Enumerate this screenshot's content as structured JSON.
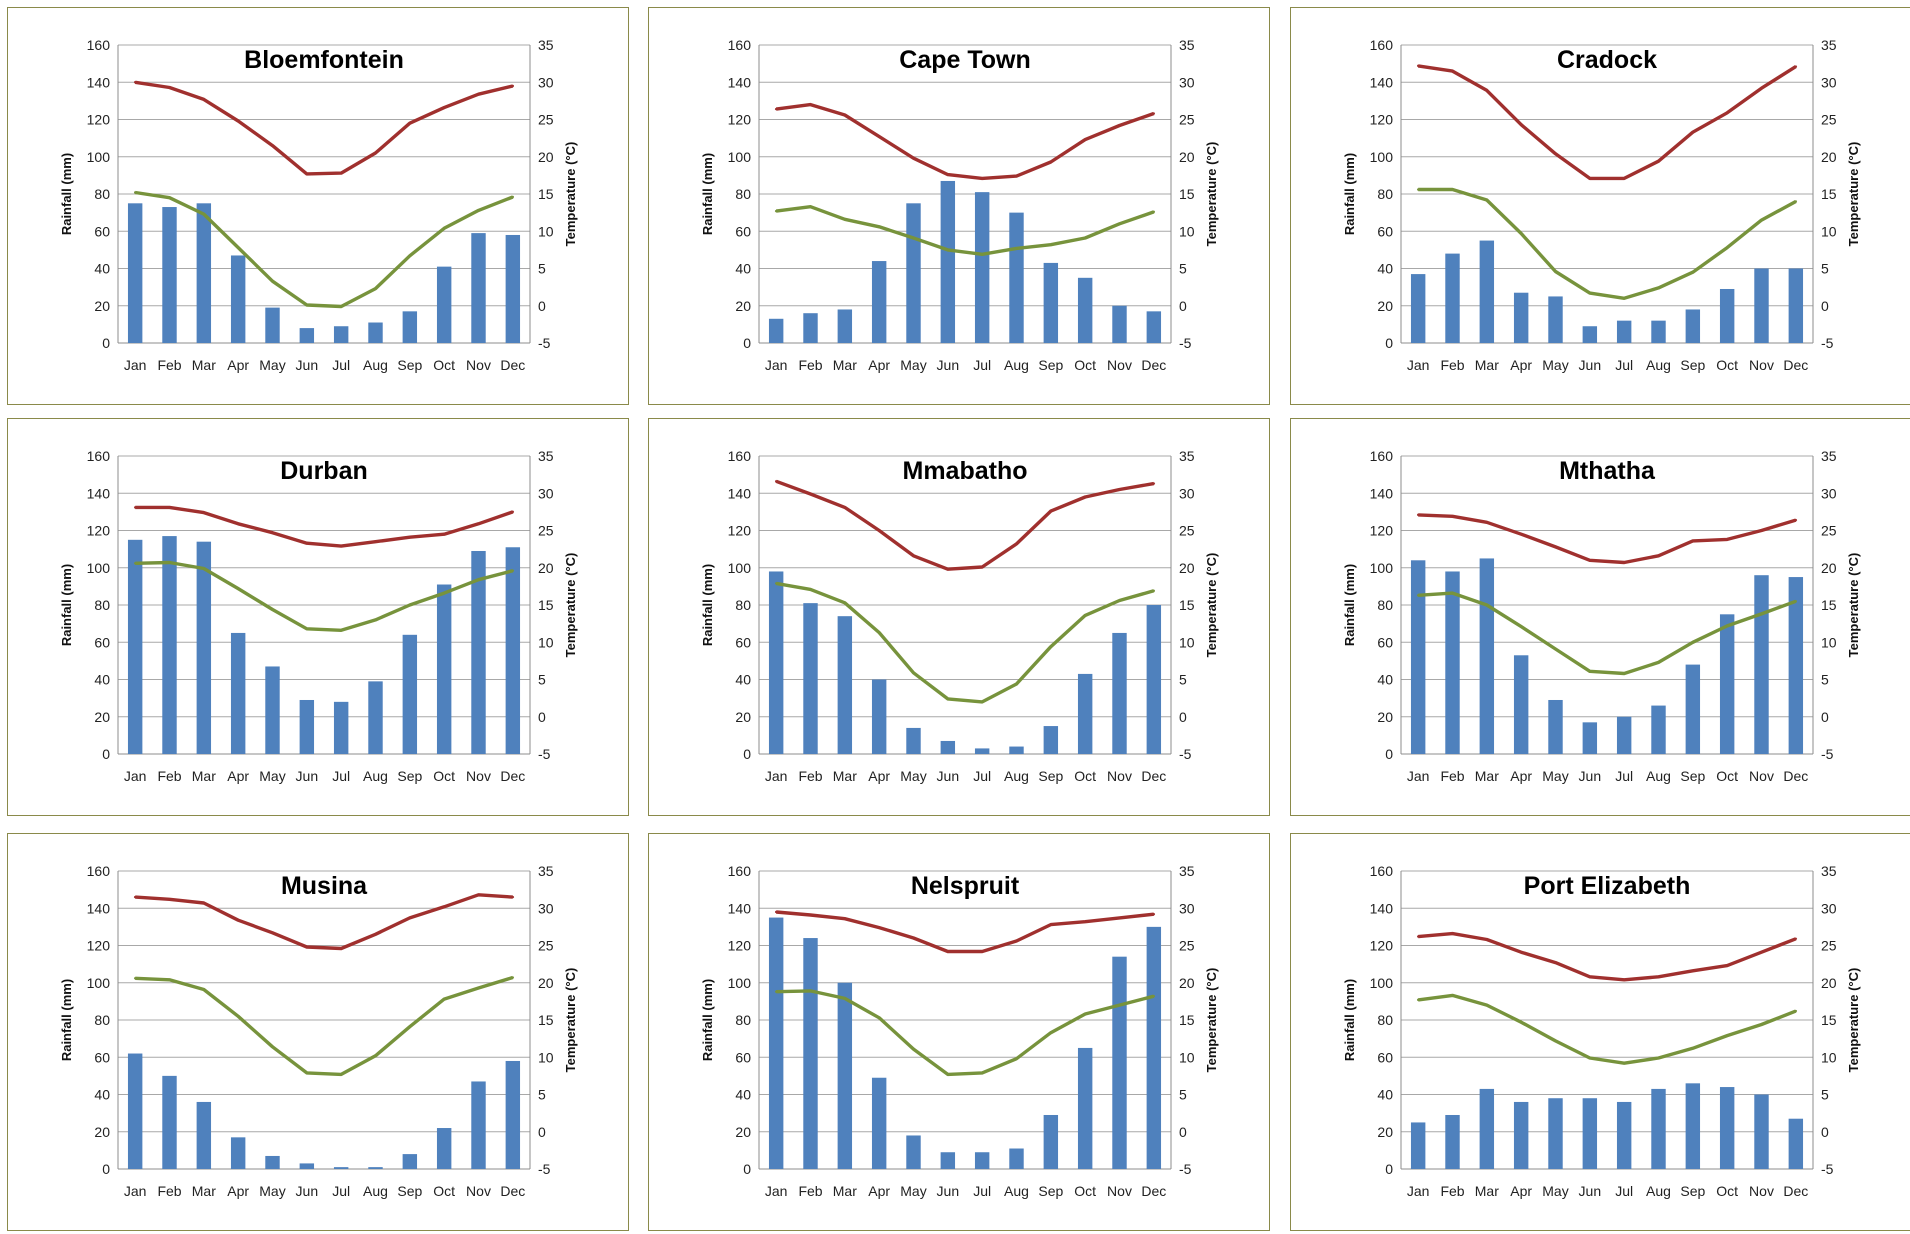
{
  "chart_data": [
    {
      "type": "bar",
      "title": "Bloemfontein",
      "categories": [
        "Jan",
        "Feb",
        "Mar",
        "Apr",
        "May",
        "Jun",
        "Jul",
        "Aug",
        "Sep",
        "Oct",
        "Nov",
        "Dec"
      ],
      "ylabel": "Rainfall  (mm)",
      "y2label": "Temperature (°C)",
      "ylim": [
        0,
        160
      ],
      "y2lim": [
        -5,
        35
      ],
      "yticks": [
        "0",
        "20",
        "40",
        "60",
        "80",
        "100",
        "120",
        "140",
        "160"
      ],
      "y2ticks": [
        "-5",
        "0",
        "5",
        "10",
        "15",
        "20",
        "25",
        "30",
        "35"
      ],
      "rainfall": [
        75,
        73,
        75,
        47,
        19,
        8,
        9,
        11,
        17,
        41,
        59,
        58
      ],
      "temp_max": [
        30,
        29.3,
        27.7,
        24.8,
        21.5,
        17.7,
        17.8,
        20.5,
        24.5,
        26.6,
        28.4,
        29.5
      ],
      "temp_min": [
        15.2,
        14.5,
        12.3,
        7.8,
        3.3,
        0.1,
        -0.1,
        2.3,
        6.7,
        10.4,
        12.8,
        14.6
      ],
      "colors": {
        "rainfall": "#4f81bd",
        "temp_max": "#a0302e",
        "temp_min": "#77933c"
      }
    },
    {
      "type": "bar",
      "title": "Cape Town",
      "categories": [
        "Jan",
        "Feb",
        "Mar",
        "Apr",
        "May",
        "Jun",
        "Jul",
        "Aug",
        "Sep",
        "Oct",
        "Nov",
        "Dec"
      ],
      "ylabel": "Rainfall  (mm)",
      "y2label": "Temperature (°C)",
      "ylim": [
        0,
        160
      ],
      "y2lim": [
        -5,
        35
      ],
      "yticks": [
        "0",
        "20",
        "40",
        "60",
        "80",
        "100",
        "120",
        "140",
        "160"
      ],
      "y2ticks": [
        "-5",
        "0",
        "5",
        "10",
        "15",
        "20",
        "25",
        "30",
        "35"
      ],
      "rainfall": [
        13,
        16,
        18,
        44,
        75,
        87,
        81,
        70,
        43,
        35,
        20,
        17
      ],
      "temp_max": [
        26.4,
        27,
        25.6,
        22.7,
        19.8,
        17.6,
        17.1,
        17.4,
        19.3,
        22.3,
        24.2,
        25.8
      ],
      "temp_min": [
        12.7,
        13.3,
        11.6,
        10.6,
        9.1,
        7.5,
        6.9,
        7.7,
        8.2,
        9.1,
        11,
        12.6
      ],
      "colors": {
        "rainfall": "#4f81bd",
        "temp_max": "#a0302e",
        "temp_min": "#77933c"
      }
    },
    {
      "type": "bar",
      "title": "Cradock",
      "categories": [
        "Jan",
        "Feb",
        "Mar",
        "Apr",
        "May",
        "Jun",
        "Jul",
        "Aug",
        "Sep",
        "Oct",
        "Nov",
        "Dec"
      ],
      "ylabel": "Rainfall  (mm)",
      "y2label": "Temperature (°C)",
      "ylim": [
        0,
        160
      ],
      "y2lim": [
        -5,
        35
      ],
      "yticks": [
        "0",
        "20",
        "40",
        "60",
        "80",
        "100",
        "120",
        "140",
        "160"
      ],
      "y2ticks": [
        "-5",
        "0",
        "5",
        "10",
        "15",
        "20",
        "25",
        "30",
        "35"
      ],
      "rainfall": [
        37,
        48,
        55,
        27,
        25,
        9,
        12,
        12,
        18,
        29,
        40,
        40
      ],
      "temp_max": [
        32.2,
        31.5,
        28.9,
        24.3,
        20.4,
        17.1,
        17.1,
        19.4,
        23.3,
        25.9,
        29.2,
        32.1
      ],
      "temp_min": [
        15.6,
        15.6,
        14.2,
        9.7,
        4.6,
        1.7,
        1,
        2.4,
        4.5,
        7.8,
        11.5,
        14
      ],
      "colors": {
        "rainfall": "#4f81bd",
        "temp_max": "#a0302e",
        "temp_min": "#77933c"
      }
    },
    {
      "type": "bar",
      "title": "Durban",
      "categories": [
        "Jan",
        "Feb",
        "Mar",
        "Apr",
        "May",
        "Jun",
        "Jul",
        "Aug",
        "Sep",
        "Oct",
        "Nov",
        "Dec"
      ],
      "ylabel": "Rainfall  (mm)",
      "y2label": "Temperature (°C)",
      "ylim": [
        0,
        160
      ],
      "y2lim": [
        -5,
        35
      ],
      "yticks": [
        "0",
        "20",
        "40",
        "60",
        "80",
        "100",
        "120",
        "140",
        "160"
      ],
      "y2ticks": [
        "-5",
        "0",
        "5",
        "10",
        "15",
        "20",
        "25",
        "30",
        "35"
      ],
      "rainfall": [
        115,
        117,
        114,
        65,
        47,
        29,
        28,
        39,
        64,
        91,
        109,
        111
      ],
      "temp_max": [
        28.1,
        28.1,
        27.4,
        25.9,
        24.7,
        23.3,
        22.9,
        23.5,
        24.1,
        24.5,
        25.9,
        27.5
      ],
      "temp_min": [
        20.6,
        20.7,
        19.9,
        17.2,
        14.4,
        11.8,
        11.6,
        13,
        15,
        16.6,
        18.4,
        19.6
      ],
      "colors": {
        "rainfall": "#4f81bd",
        "temp_max": "#a0302e",
        "temp_min": "#77933c"
      }
    },
    {
      "type": "bar",
      "title": "Mmabatho",
      "categories": [
        "Jan",
        "Feb",
        "Mar",
        "Apr",
        "May",
        "Jun",
        "Jul",
        "Aug",
        "Sep",
        "Oct",
        "Nov",
        "Dec"
      ],
      "ylabel": "Rainfall  (mm)",
      "y2label": "Temperature (°C)",
      "ylim": [
        0,
        160
      ],
      "y2lim": [
        -5,
        35
      ],
      "yticks": [
        "0",
        "20",
        "40",
        "60",
        "80",
        "100",
        "120",
        "140",
        "160"
      ],
      "y2ticks": [
        "-5",
        "0",
        "5",
        "10",
        "15",
        "20",
        "25",
        "30",
        "35"
      ],
      "rainfall": [
        98,
        81,
        74,
        40,
        14,
        7,
        3,
        4,
        15,
        43,
        65,
        80
      ],
      "temp_max": [
        31.6,
        29.9,
        28.1,
        25,
        21.6,
        19.8,
        20.1,
        23.2,
        27.6,
        29.5,
        30.5,
        31.3
      ],
      "temp_min": [
        17.9,
        17.1,
        15.3,
        11.3,
        5.9,
        2.4,
        2,
        4.4,
        9.4,
        13.6,
        15.6,
        16.9
      ],
      "colors": {
        "rainfall": "#4f81bd",
        "temp_max": "#a0302e",
        "temp_min": "#77933c"
      }
    },
    {
      "type": "bar",
      "title": "Mthatha",
      "categories": [
        "Jan",
        "Feb",
        "Mar",
        "Apr",
        "May",
        "Jun",
        "Jul",
        "Aug",
        "Sep",
        "Oct",
        "Nov",
        "Dec"
      ],
      "ylabel": "Rainfall  (mm)",
      "y2label": "Temperature (°C)",
      "ylim": [
        0,
        160
      ],
      "y2lim": [
        -5,
        35
      ],
      "yticks": [
        "0",
        "20",
        "40",
        "60",
        "80",
        "100",
        "120",
        "140",
        "160"
      ],
      "y2ticks": [
        "-5",
        "0",
        "5",
        "10",
        "15",
        "20",
        "25",
        "30",
        "35"
      ],
      "rainfall": [
        104,
        98,
        105,
        53,
        29,
        17,
        20,
        26,
        48,
        75,
        96,
        95
      ],
      "temp_max": [
        27.1,
        26.9,
        26.1,
        24.5,
        22.8,
        21,
        20.7,
        21.6,
        23.6,
        23.8,
        25,
        26.4
      ],
      "temp_min": [
        16.3,
        16.6,
        15,
        12.1,
        9.1,
        6.1,
        5.8,
        7.3,
        10,
        12.2,
        13.8,
        15.5
      ],
      "colors": {
        "rainfall": "#4f81bd",
        "temp_max": "#a0302e",
        "temp_min": "#77933c"
      }
    },
    {
      "type": "bar",
      "title": "Musina",
      "categories": [
        "Jan",
        "Feb",
        "Mar",
        "Apr",
        "May",
        "Jun",
        "Jul",
        "Aug",
        "Sep",
        "Oct",
        "Nov",
        "Dec"
      ],
      "ylabel": "Rainfall  (mm)",
      "y2label": "Temperature (°C)",
      "ylim": [
        0,
        160
      ],
      "y2lim": [
        -5,
        35
      ],
      "yticks": [
        "0",
        "20",
        "40",
        "60",
        "80",
        "100",
        "120",
        "140",
        "160"
      ],
      "y2ticks": [
        "-5",
        "0",
        "5",
        "10",
        "15",
        "20",
        "25",
        "30",
        "35"
      ],
      "rainfall": [
        62,
        50,
        36,
        17,
        7,
        3,
        1,
        1,
        8,
        22,
        47,
        58
      ],
      "temp_max": [
        31.5,
        31.2,
        30.7,
        28.4,
        26.7,
        24.8,
        24.6,
        26.5,
        28.7,
        30.2,
        31.8,
        31.5
      ],
      "temp_min": [
        20.6,
        20.4,
        19.1,
        15.5,
        11.4,
        7.9,
        7.7,
        10.2,
        14.1,
        17.8,
        19.3,
        20.7
      ],
      "colors": {
        "rainfall": "#4f81bd",
        "temp_max": "#a0302e",
        "temp_min": "#77933c"
      }
    },
    {
      "type": "bar",
      "title": "Nelspruit",
      "categories": [
        "Jan",
        "Feb",
        "Mar",
        "Apr",
        "May",
        "Jun",
        "Jul",
        "Aug",
        "Sep",
        "Oct",
        "Nov",
        "Dec"
      ],
      "ylabel": "Rainfall  (mm)",
      "y2label": "Temperature (°C)",
      "ylim": [
        0,
        160
      ],
      "y2lim": [
        -5,
        35
      ],
      "yticks": [
        "0",
        "20",
        "40",
        "60",
        "80",
        "100",
        "120",
        "140",
        "160"
      ],
      "y2ticks": [
        "-5",
        "0",
        "5",
        "10",
        "15",
        "20",
        "25",
        "30",
        "35"
      ],
      "rainfall": [
        135,
        124,
        100,
        49,
        18,
        9,
        9,
        11,
        29,
        65,
        114,
        130
      ],
      "temp_max": [
        29.5,
        29.1,
        28.6,
        27.4,
        26,
        24.2,
        24.2,
        25.6,
        27.8,
        28.2,
        28.7,
        29.2
      ],
      "temp_min": [
        18.8,
        18.9,
        17.9,
        15.3,
        11.1,
        7.7,
        7.9,
        9.8,
        13.3,
        15.8,
        17,
        18.2
      ],
      "colors": {
        "rainfall": "#4f81bd",
        "temp_max": "#a0302e",
        "temp_min": "#77933c"
      }
    },
    {
      "type": "bar",
      "title": "Port Elizabeth",
      "categories": [
        "Jan",
        "Feb",
        "Mar",
        "Apr",
        "May",
        "Jun",
        "Jul",
        "Aug",
        "Sep",
        "Oct",
        "Nov",
        "Dec"
      ],
      "ylabel": "Rainfall  (mm)",
      "y2label": "Temperature (°C)",
      "ylim": [
        0,
        160
      ],
      "y2lim": [
        -5,
        35
      ],
      "yticks": [
        "0",
        "20",
        "40",
        "60",
        "80",
        "100",
        "120",
        "140",
        "160"
      ],
      "y2ticks": [
        "-5",
        "0",
        "5",
        "10",
        "15",
        "20",
        "25",
        "30",
        "35"
      ],
      "rainfall": [
        25,
        29,
        43,
        36,
        38,
        38,
        36,
        43,
        46,
        44,
        40,
        27
      ],
      "temp_max": [
        26.2,
        26.6,
        25.8,
        24.1,
        22.7,
        20.8,
        20.4,
        20.8,
        21.6,
        22.3,
        24.1,
        25.9
      ],
      "temp_min": [
        17.7,
        18.3,
        17,
        14.7,
        12.2,
        9.9,
        9.2,
        9.9,
        11.2,
        12.9,
        14.4,
        16.2
      ],
      "colors": {
        "rainfall": "#4f81bd",
        "temp_max": "#a0302e",
        "temp_min": "#77933c"
      }
    }
  ]
}
